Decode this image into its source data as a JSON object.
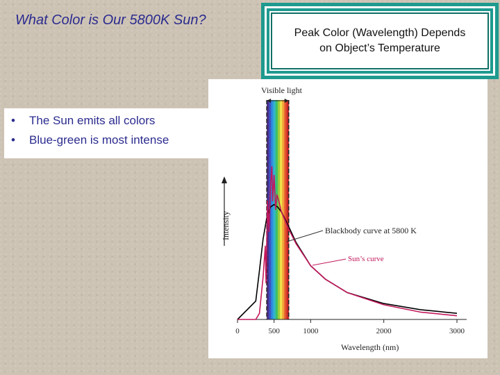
{
  "slide": {
    "title": "What Color is Our 5800K Sun?",
    "callout": {
      "line1": "Peak Color (Wavelength) Depends",
      "line2": "on Object’s Temperature"
    },
    "bullets": [
      {
        "marker": "•",
        "text": "The Sun emits all colors"
      },
      {
        "marker": "•",
        "text": "Blue-green is most intense"
      }
    ]
  },
  "chart_data": {
    "type": "line",
    "title": "",
    "xlabel": "Wavelength (nm)",
    "ylabel": "Intensity",
    "xlim": [
      0,
      3000
    ],
    "x_ticks": [
      0,
      500,
      1000,
      2000,
      3000
    ],
    "x_tick_labels": [
      "0",
      "500",
      "1000",
      "2000",
      "3000"
    ],
    "visible_band": {
      "label": "Visible light",
      "start": 400,
      "end": 700
    },
    "annotations": [
      {
        "text": "Blackbody curve at 5800 K",
        "color": "#000000"
      },
      {
        "text": "Sun’s curve",
        "color": "#c2185b"
      }
    ],
    "series": [
      {
        "name": "Blackbody curve at 5800 K",
        "color": "#000000",
        "x": [
          0,
          250,
          300,
          350,
          400,
          450,
          500,
          550,
          600,
          700,
          800,
          1000,
          1200,
          1500,
          2000,
          2500,
          3000
        ],
        "y": [
          0,
          0.15,
          0.4,
          0.66,
          0.83,
          0.92,
          0.94,
          0.92,
          0.88,
          0.76,
          0.63,
          0.44,
          0.33,
          0.22,
          0.13,
          0.08,
          0.05
        ]
      },
      {
        "name": "Sun’s curve",
        "color": "#c2185b",
        "x": [
          0,
          250,
          300,
          350,
          380,
          390,
          410,
          430,
          450,
          470,
          480,
          500,
          520,
          540,
          560,
          600,
          700,
          800,
          1000,
          1200,
          1500,
          2000,
          2500,
          3000
        ],
        "y": [
          0,
          0.0,
          0.05,
          0.35,
          0.6,
          0.3,
          0.97,
          0.72,
          1.08,
          1.25,
          0.97,
          1.18,
          0.9,
          1.02,
          0.98,
          0.88,
          0.74,
          0.62,
          0.44,
          0.33,
          0.22,
          0.12,
          0.06,
          0.03
        ]
      }
    ],
    "spectrum_colors": [
      "#4a2f8a",
      "#3a55c6",
      "#2f8fe0",
      "#33b7c8",
      "#3fbf6a",
      "#9ccc3a",
      "#f0e14a",
      "#f2a33a",
      "#e4572e",
      "#c62828"
    ]
  }
}
